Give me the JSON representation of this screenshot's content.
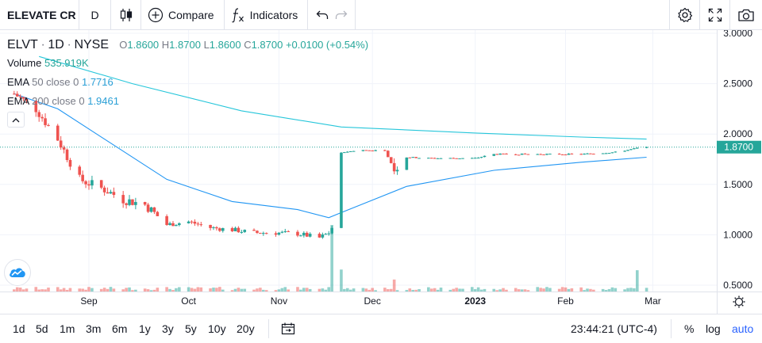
{
  "toolbar": {
    "symbol": "ELEVATE CR",
    "interval": "D",
    "compare_label": "Compare",
    "indicators_label": "Indicators",
    "icons": [
      "candles-icon",
      "plus-circle-icon",
      "fx-icon",
      "undo-icon",
      "redo-icon",
      "gear-icon",
      "fullscreen-icon",
      "camera-icon"
    ]
  },
  "legend": {
    "ticker": "ELVT",
    "interval": "1D",
    "exchange": "NYSE",
    "o_label": "O",
    "o_value": "1.8600",
    "h_label": "H",
    "h_value": "1.8700",
    "l_label": "L",
    "l_value": "1.8600",
    "c_label": "C",
    "c_value": "1.8700",
    "change": "+0.0100 (+0.54%)",
    "volume_label": "Volume",
    "volume_value": "535.919K",
    "ema50_label": "EMA",
    "ema50_params": "50 close 0",
    "ema50_value": "1.7716",
    "ema200_label": "EMA",
    "ema200_params": "200 close 0",
    "ema200_value": "1.9461"
  },
  "bottom": {
    "ranges": [
      "1d",
      "5d",
      "1m",
      "3m",
      "6m",
      "1y",
      "3y",
      "5y",
      "10y",
      "20y"
    ],
    "time": "23:44:21 (UTC-4)",
    "percent": "%",
    "log": "log",
    "auto": "auto"
  },
  "colors": {
    "up": "#26a69a",
    "down": "#ef5350",
    "ema50": "#2196f3",
    "ema200": "#26c6da",
    "accent": "#2962ff"
  },
  "chart_data": {
    "type": "candlestick",
    "title": "",
    "ylim": [
      0.43,
      3.03
    ],
    "y_ticks": [
      "3.0000",
      "2.5000",
      "2.0000",
      "1.5000",
      "1.0000",
      "0.5000"
    ],
    "y_tick_values": [
      3.0,
      2.5,
      2.0,
      1.5,
      1.0,
      0.5
    ],
    "x_ticks": [
      "Sep",
      "Oct",
      "Nov",
      "Dec",
      "2023",
      "Feb",
      "Mar"
    ],
    "x_tick_dates": [
      "2022-09-01",
      "2022-10-03",
      "2022-11-01",
      "2022-12-01",
      "2023-01-03",
      "2023-02-01",
      "2023-03-01"
    ],
    "last_price": "1.8700",
    "last_price_value": 1.87,
    "grid": true,
    "anchors": [
      {
        "date": "2022-08-08",
        "close": 2.4
      },
      {
        "date": "2022-08-15",
        "close": 2.25
      },
      {
        "date": "2022-08-22",
        "close": 1.95
      },
      {
        "date": "2022-08-29",
        "close": 1.55
      },
      {
        "date": "2022-09-06",
        "close": 1.45
      },
      {
        "date": "2022-09-12",
        "close": 1.35
      },
      {
        "date": "2022-09-19",
        "close": 1.3
      },
      {
        "date": "2022-09-26",
        "close": 1.1
      },
      {
        "date": "2022-10-03",
        "close": 1.13
      },
      {
        "date": "2022-10-10",
        "close": 1.07
      },
      {
        "date": "2022-10-17",
        "close": 1.05
      },
      {
        "date": "2022-10-24",
        "close": 1.02
      },
      {
        "date": "2022-10-31",
        "close": 1.02
      },
      {
        "date": "2022-11-07",
        "close": 1.01
      },
      {
        "date": "2022-11-14",
        "close": 0.97
      },
      {
        "date": "2022-11-17",
        "close": 1.02
      },
      {
        "date": "2022-11-18",
        "close": 1.07
      },
      {
        "date": "2022-11-21",
        "close": 1.82
      },
      {
        "date": "2022-11-28",
        "close": 1.84
      },
      {
        "date": "2022-12-05",
        "close": 1.83
      },
      {
        "date": "2022-12-08",
        "close": 1.65
      },
      {
        "date": "2022-12-12",
        "close": 1.77
      },
      {
        "date": "2022-12-19",
        "close": 1.76
      },
      {
        "date": "2023-01-03",
        "close": 1.76
      },
      {
        "date": "2023-01-09",
        "close": 1.8
      },
      {
        "date": "2023-01-23",
        "close": 1.8
      },
      {
        "date": "2023-02-06",
        "close": 1.8
      },
      {
        "date": "2023-02-17",
        "close": 1.82
      },
      {
        "date": "2023-02-24",
        "close": 1.86
      },
      {
        "date": "2023-02-27",
        "close": 1.87
      }
    ],
    "ema50": [
      {
        "date": "2022-08-08",
        "value": 2.4
      },
      {
        "date": "2022-08-22",
        "value": 2.25
      },
      {
        "date": "2022-09-06",
        "value": 1.95
      },
      {
        "date": "2022-09-26",
        "value": 1.55
      },
      {
        "date": "2022-10-17",
        "value": 1.33
      },
      {
        "date": "2022-11-07",
        "value": 1.25
      },
      {
        "date": "2022-11-17",
        "value": 1.17
      },
      {
        "date": "2022-11-21",
        "value": 1.22
      },
      {
        "date": "2022-12-12",
        "value": 1.48
      },
      {
        "date": "2023-01-09",
        "value": 1.64
      },
      {
        "date": "2023-02-06",
        "value": 1.72
      },
      {
        "date": "2023-02-27",
        "value": 1.77
      }
    ],
    "ema200": [
      {
        "date": "2022-08-16",
        "value": 2.77
      },
      {
        "date": "2022-09-15",
        "value": 2.5
      },
      {
        "date": "2022-10-20",
        "value": 2.23
      },
      {
        "date": "2022-11-21",
        "value": 2.07
      },
      {
        "date": "2023-01-03",
        "value": 2.01
      },
      {
        "date": "2023-02-06",
        "value": 1.97
      },
      {
        "date": "2023-02-27",
        "value": 1.95
      }
    ],
    "volume_spikes": [
      {
        "date": "2022-11-18",
        "relative": 1.0
      },
      {
        "date": "2022-11-21",
        "relative": 0.33
      },
      {
        "date": "2022-12-08",
        "relative": 0.18
      },
      {
        "date": "2023-02-24",
        "relative": 0.32
      }
    ]
  }
}
